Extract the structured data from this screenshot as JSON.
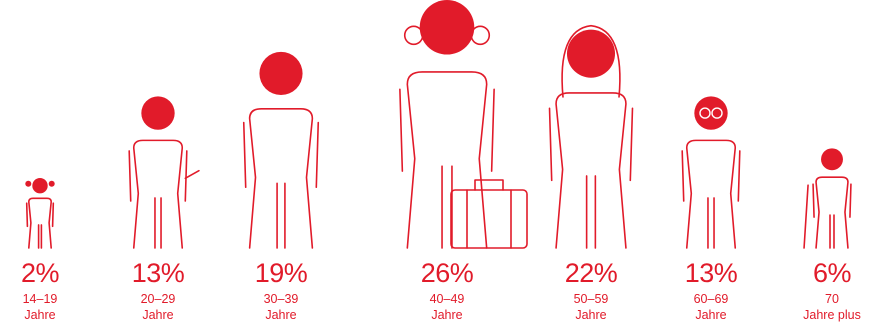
{
  "colors": {
    "accent": "#e11b2a",
    "background": "#ffffff"
  },
  "chart_data": {
    "type": "bar",
    "title": "",
    "categories": [
      "14–19",
      "20–29",
      "30–39",
      "40–49",
      "50–59",
      "60–69",
      "70"
    ],
    "values": [
      2,
      13,
      19,
      26,
      22,
      13,
      6
    ],
    "value_labels": [
      "2%",
      "13%",
      "19%",
      "26%",
      "22%",
      "13%",
      "6%"
    ],
    "units": [
      "Jahre",
      "Jahre",
      "Jahre",
      "Jahre",
      "Jahre",
      "Jahre",
      "Jahre plus"
    ],
    "icons": [
      "child-figure-icon",
      "walking-figure-icon",
      "adult-figure-icon",
      "business-figure-with-suitcase-icon",
      "woman-figure-icon",
      "figure-with-glasses-icon",
      "elderly-figure-with-cane-icon"
    ]
  }
}
